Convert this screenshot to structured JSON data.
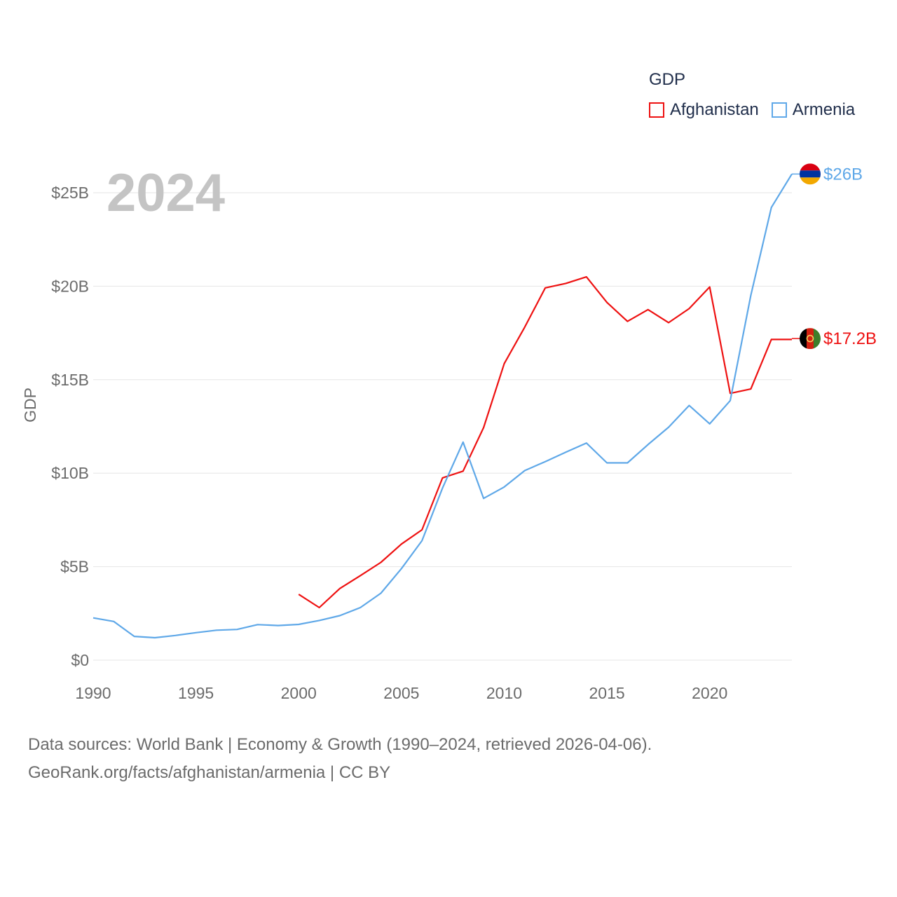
{
  "chart_data": {
    "type": "line",
    "title": "GDP",
    "ylabel": "GDP",
    "xlabel": "",
    "year_label": "2024",
    "xlim": [
      1990,
      2024
    ],
    "ylim": [
      0,
      26.5
    ],
    "x_ticks": [
      1990,
      1995,
      2000,
      2005,
      2010,
      2015,
      2020
    ],
    "y_ticks": [
      {
        "value": 0,
        "label": "$0"
      },
      {
        "value": 5,
        "label": "$5B"
      },
      {
        "value": 10,
        "label": "$10B"
      },
      {
        "value": 15,
        "label": "$15B"
      },
      {
        "value": 20,
        "label": "$20B"
      },
      {
        "value": 25,
        "label": "$25B"
      }
    ],
    "units": "USD billions",
    "grid": true,
    "legend_position": "top-right",
    "series": [
      {
        "name": "Afghanistan",
        "color": "#ee1111",
        "end_label": "$17.2B",
        "end_value": 17.2,
        "flag_icon": "afghanistan-flag-icon",
        "x": [
          2000,
          2001,
          2002,
          2003,
          2004,
          2005,
          2006,
          2007,
          2008,
          2009,
          2010,
          2011,
          2012,
          2013,
          2014,
          2015,
          2016,
          2017,
          2018,
          2019,
          2020,
          2021,
          2022,
          2023,
          2024
        ],
        "values": [
          3.52,
          2.81,
          3.83,
          4.52,
          5.23,
          6.21,
          6.97,
          9.75,
          10.11,
          12.44,
          15.86,
          17.81,
          19.91,
          20.15,
          20.5,
          19.13,
          18.12,
          18.75,
          18.05,
          18.8,
          19.96,
          14.27,
          14.5,
          17.15,
          17.15
        ]
      },
      {
        "name": "Armenia",
        "color": "#5fa8e8",
        "end_label": "$26B",
        "end_value": 26.0,
        "flag_icon": "armenia-flag-icon",
        "x": [
          1990,
          1991,
          1992,
          1993,
          1994,
          1995,
          1996,
          1997,
          1998,
          1999,
          2000,
          2001,
          2002,
          2003,
          2004,
          2005,
          2006,
          2007,
          2008,
          2009,
          2010,
          2011,
          2012,
          2013,
          2014,
          2015,
          2016,
          2017,
          2018,
          2019,
          2020,
          2021,
          2022,
          2023,
          2024
        ],
        "values": [
          2.26,
          2.07,
          1.27,
          1.2,
          1.32,
          1.47,
          1.6,
          1.64,
          1.9,
          1.85,
          1.91,
          2.12,
          2.38,
          2.81,
          3.58,
          4.9,
          6.39,
          9.21,
          11.66,
          8.65,
          9.26,
          10.14,
          10.62,
          11.12,
          11.61,
          10.55,
          10.55,
          11.53,
          12.46,
          13.62,
          12.64,
          13.88,
          19.51,
          24.21,
          26.0
        ]
      }
    ]
  },
  "legend": {
    "title": "GDP",
    "items": [
      {
        "label": "Afghanistan",
        "color": "#ee1111"
      },
      {
        "label": "Armenia",
        "color": "#5fa8e8"
      }
    ]
  },
  "footer": {
    "line1": "Data sources: World Bank | Economy & Growth (1990–2024, retrieved 2026-04-06).",
    "line2": "GeoRank.org/facts/afghanistan/armenia | CC BY"
  }
}
